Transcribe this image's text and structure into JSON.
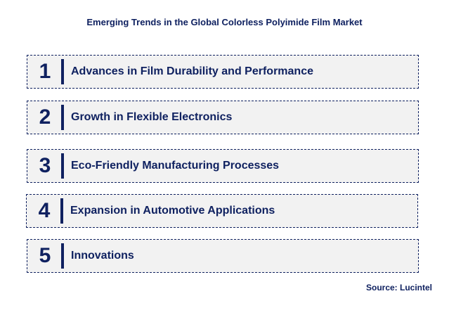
{
  "title": "Emerging Trends in the Global Colorless Polyimide Film Market",
  "items": [
    {
      "number": "1",
      "label": "Advances in Film Durability and Performance"
    },
    {
      "number": "2",
      "label": "Growth in Flexible Electronics"
    },
    {
      "number": "3",
      "label": "Eco-Friendly Manufacturing Processes"
    },
    {
      "number": "4",
      "label": "Expansion in Automotive Applications"
    },
    {
      "number": "5",
      "label": "Innovations"
    }
  ],
  "source": "Source: Lucintel",
  "colors": {
    "accent": "#0f2160",
    "box_bg": "#f2f2f2"
  }
}
